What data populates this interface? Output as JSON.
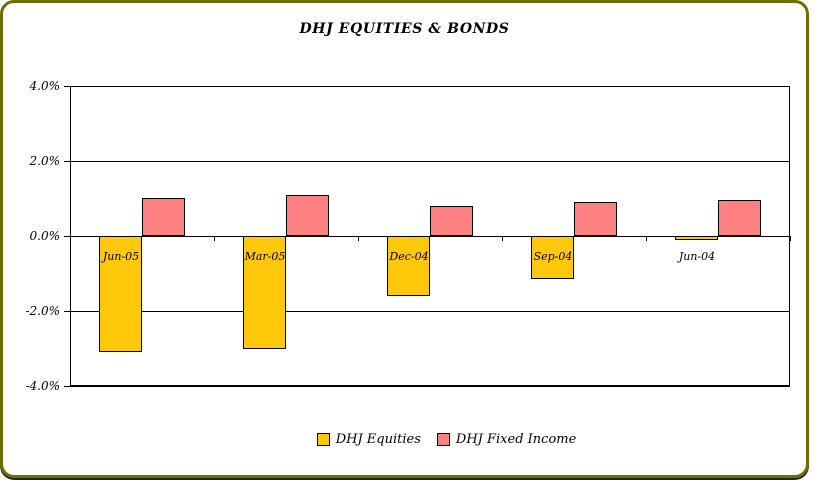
{
  "frame": {
    "border_color": "#6e6e00",
    "background": "#ffffff"
  },
  "chart_data": {
    "type": "bar",
    "title": "DHJ EQUITIES & BONDS",
    "categories": [
      "Jun-05",
      "Mar-05",
      "Dec-04",
      "Sep-04",
      "Jun-04"
    ],
    "series": [
      {
        "name": "DHJ Equities",
        "color": "#FFC80A",
        "values": [
          -3.1,
          -3.0,
          -1.6,
          -1.15,
          -0.1
        ]
      },
      {
        "name": "DHJ Fixed Income",
        "color": "#FF8080",
        "values": [
          1.0,
          1.1,
          0.8,
          0.9,
          0.95
        ]
      }
    ],
    "ylim": [
      -4.0,
      4.0
    ],
    "yticks": [
      {
        "value": 4.0,
        "label": "4.0%"
      },
      {
        "value": 2.0,
        "label": "2.0%"
      },
      {
        "value": 0.0,
        "label": "0.0%"
      },
      {
        "value": -2.0,
        "label": "-2.0%"
      },
      {
        "value": -4.0,
        "label": "-4.0%"
      }
    ],
    "grid": "horizontal",
    "legend_position": "bottom",
    "bar_border_color": "#000000",
    "category_label_position": "below-zero-axis"
  }
}
